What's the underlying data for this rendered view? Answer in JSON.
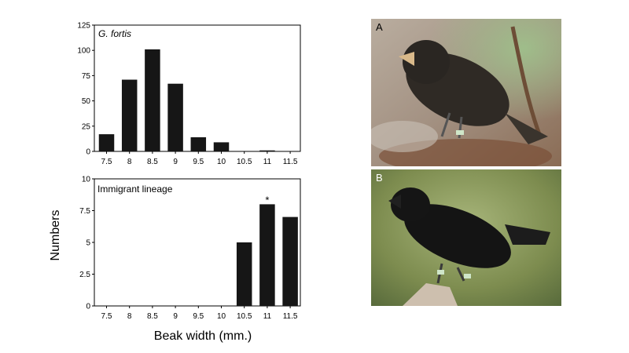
{
  "chart_data": [
    {
      "type": "bar",
      "title": "G. fortis",
      "categories": [
        "7.5",
        "8",
        "8.5",
        "9",
        "9.5",
        "10",
        "10.5",
        "11",
        "11.5"
      ],
      "values": [
        17,
        71,
        101,
        67,
        14,
        9,
        0,
        1,
        0
      ],
      "ylim": [
        0,
        125
      ],
      "yticks": [
        "0",
        "25",
        "50",
        "75",
        "100",
        "125"
      ],
      "grid": false
    },
    {
      "type": "bar",
      "title": "Immigrant lineage",
      "categories": [
        "7.5",
        "8",
        "8.5",
        "9",
        "9.5",
        "10",
        "10.5",
        "11",
        "11.5"
      ],
      "values": [
        0,
        0,
        0,
        0,
        0,
        0,
        5,
        8,
        7
      ],
      "ylim": [
        0,
        10
      ],
      "yticks": [
        "0",
        "2.5",
        "5",
        "7.5",
        "10"
      ],
      "annotation": {
        "category": "11",
        "text": "*"
      },
      "grid": false
    }
  ],
  "axes": {
    "ylabel": "Numbers",
    "xlabel": "Beak width (mm.)"
  },
  "photos": [
    {
      "label": "A",
      "subject": "finch-photo-a"
    },
    {
      "label": "B",
      "subject": "finch-photo-b"
    }
  ],
  "colors": {
    "bar": "#161616",
    "axis": "#000000"
  }
}
